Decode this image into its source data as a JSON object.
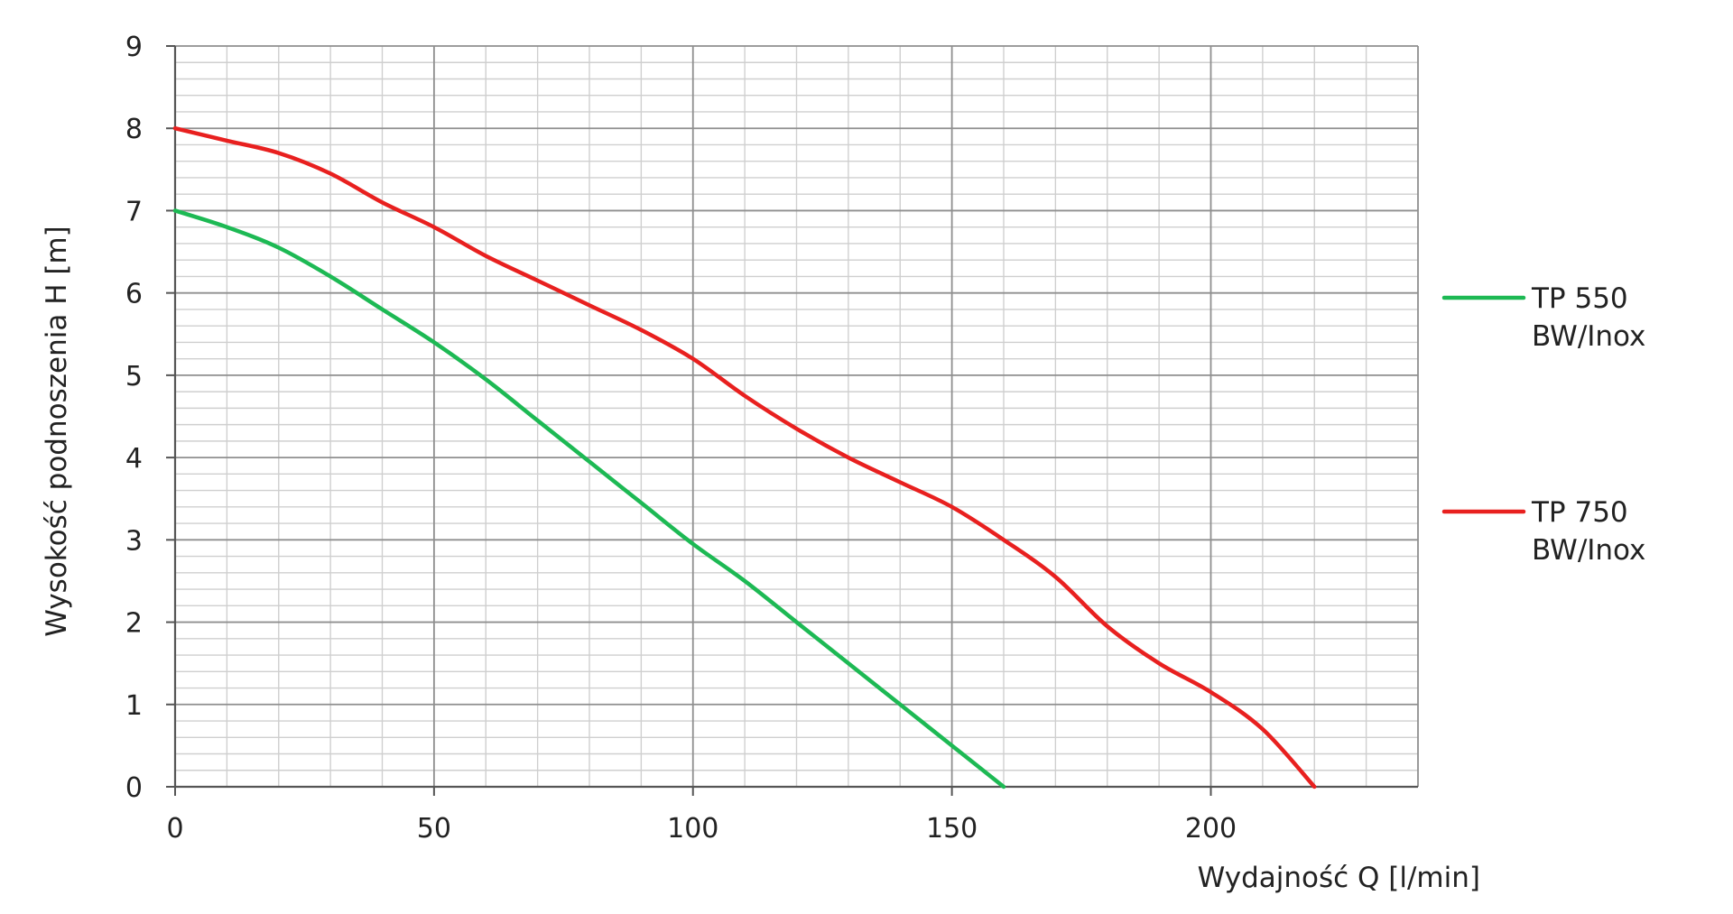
{
  "chart_data": {
    "type": "line",
    "title": "",
    "xlabel": "Wydajność Q [l/min]",
    "ylabel": "Wysokość podnoszenia H [m]",
    "xlim": [
      0,
      240
    ],
    "ylim": [
      0,
      9
    ],
    "x_ticks": [
      0,
      50,
      100,
      150,
      200
    ],
    "y_ticks": [
      0,
      1,
      2,
      3,
      4,
      5,
      6,
      7,
      8,
      9
    ],
    "x_minor_step": 10,
    "y_minor_step": 0.2,
    "grid": true,
    "legend_position": "right",
    "series": [
      {
        "name": "TP 550 BW/Inox",
        "label_lines": [
          "TP 550",
          "BW/Inox"
        ],
        "color": "#1db954",
        "x": [
          0,
          10,
          20,
          30,
          40,
          50,
          60,
          70,
          80,
          90,
          100,
          110,
          120,
          130,
          140,
          150,
          160
        ],
        "y": [
          7.0,
          6.8,
          6.55,
          6.2,
          5.8,
          5.4,
          4.95,
          4.45,
          3.95,
          3.45,
          2.95,
          2.5,
          2.0,
          1.5,
          1.0,
          0.5,
          0.0
        ]
      },
      {
        "name": "TP 750 BW/Inox",
        "label_lines": [
          "TP 750",
          "BW/Inox"
        ],
        "color": "#e8201f",
        "x": [
          0,
          10,
          20,
          30,
          40,
          50,
          60,
          70,
          80,
          90,
          100,
          110,
          120,
          130,
          140,
          150,
          160,
          170,
          180,
          190,
          200,
          210,
          220
        ],
        "y": [
          8.0,
          7.85,
          7.7,
          7.45,
          7.1,
          6.8,
          6.45,
          6.15,
          5.85,
          5.55,
          5.2,
          4.75,
          4.35,
          4.0,
          3.7,
          3.4,
          3.0,
          2.55,
          1.95,
          1.5,
          1.15,
          0.7,
          0.0
        ]
      }
    ]
  }
}
